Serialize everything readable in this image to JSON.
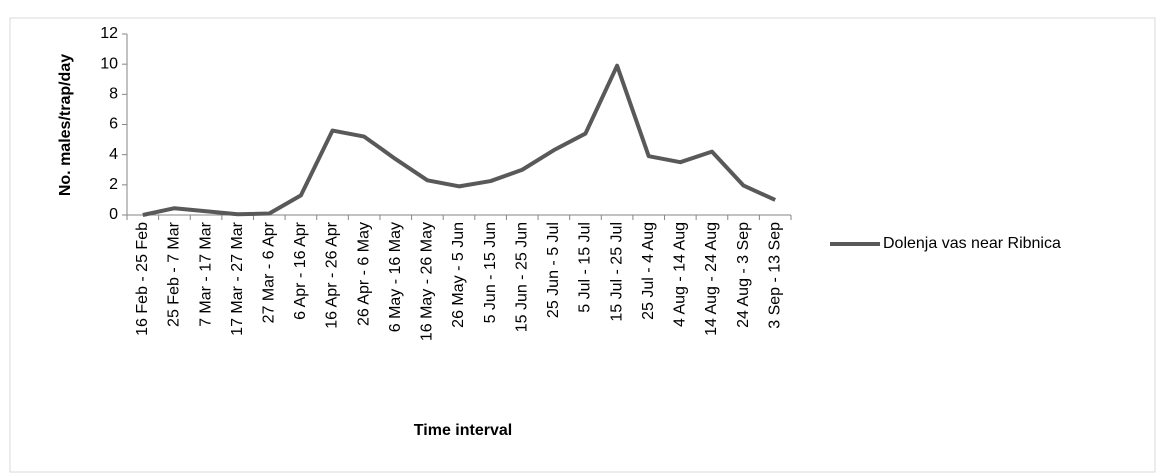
{
  "chart_data": {
    "type": "line",
    "x_label": "Time interval",
    "y_label": "No. males/trap/day",
    "categories": [
      "16 Feb - 25 Feb",
      "25 Feb - 7 Mar",
      "7 Mar - 17 Mar",
      "17 Mar - 27 Mar",
      "27 Mar - 6 Apr",
      "6 Apr - 16 Apr",
      "16 Apr - 26 Apr",
      "26 Apr - 6 May",
      "6 May - 16 May",
      "16 May - 26 May",
      "26 May - 5 Jun",
      "5 Jun - 15 Jun",
      "15 Jun - 25 Jun",
      "25 Jun - 5 Jul",
      "5 Jul - 15 Jul",
      "15 Jul - 25 Jul",
      "25 Jul - 4 Aug",
      "4 Aug - 14 Aug",
      "14 Aug - 24 Aug",
      "24 Aug - 3 Sep",
      "3 Sep - 13 Sep"
    ],
    "series": [
      {
        "name": "Dolenja vas near Ribnica",
        "color": "#595959",
        "values": [
          0,
          0.45,
          0.25,
          0.05,
          0.1,
          1.3,
          5.6,
          5.2,
          3.7,
          2.3,
          1.9,
          2.25,
          3.0,
          4.3,
          5.4,
          9.9,
          3.9,
          3.5,
          4.2,
          1.95,
          1.0
        ]
      }
    ],
    "ylim": [
      0,
      12
    ],
    "yticks": [
      0,
      2,
      4,
      6,
      8,
      10,
      12
    ],
    "legend": "right",
    "grid": false
  }
}
